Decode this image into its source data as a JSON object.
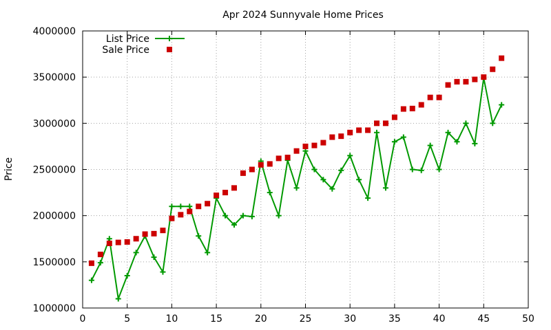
{
  "chart_data": {
    "type": "scatter",
    "title": "Apr 2024 Sunnyvale Home Prices",
    "xlabel": "",
    "ylabel": "Price",
    "xlim": [
      0,
      50
    ],
    "ylim": [
      1000000,
      4000000
    ],
    "xticks": [
      "0",
      "5",
      "10",
      "15",
      "20",
      "25",
      "30",
      "35",
      "40",
      "45",
      "50"
    ],
    "yticks": [
      "1000000",
      "1500000",
      "2000000",
      "2500000",
      "3000000",
      "3500000",
      "4000000"
    ],
    "grid": true,
    "legend_position": "top-left",
    "series": [
      {
        "name": "List Price",
        "style": "line+cross",
        "color": "#009900",
        "x": [
          1,
          2,
          3,
          4,
          5,
          6,
          7,
          8,
          9,
          10,
          11,
          12,
          13,
          14,
          15,
          16,
          17,
          18,
          19,
          20,
          21,
          22,
          23,
          24,
          25,
          26,
          27,
          28,
          29,
          30,
          31,
          32,
          33,
          34,
          35,
          36,
          37,
          38,
          39,
          40,
          41,
          42,
          43,
          44,
          45,
          46,
          47
        ],
        "y": [
          1300000,
          1490000,
          1750000,
          1100000,
          1350000,
          1600000,
          1780000,
          1550000,
          1390000,
          2100000,
          2100000,
          2100000,
          1780000,
          1600000,
          2190000,
          2000000,
          1900000,
          2000000,
          1990000,
          2590000,
          2250000,
          2000000,
          2600000,
          2300000,
          2700000,
          2500000,
          2390000,
          2290000,
          2490000,
          2650000,
          2390000,
          2190000,
          2900000,
          2300000,
          2800000,
          2850000,
          2500000,
          2490000,
          2760000,
          2500000,
          2900000,
          2800000,
          3000000,
          2780000,
          3490000,
          3000000,
          3200000
        ]
      },
      {
        "name": "Sale Price",
        "style": "square",
        "color": "#cc0000",
        "x": [
          1,
          2,
          3,
          4,
          5,
          6,
          7,
          8,
          9,
          10,
          11,
          12,
          13,
          14,
          15,
          16,
          17,
          18,
          19,
          20,
          21,
          22,
          23,
          24,
          25,
          26,
          27,
          28,
          29,
          30,
          31,
          32,
          33,
          34,
          35,
          36,
          37,
          38,
          39,
          40,
          41,
          42,
          43,
          44,
          45,
          46,
          47
        ],
        "y": [
          1485000,
          1580000,
          1700000,
          1710000,
          1715000,
          1750000,
          1800000,
          1805000,
          1840000,
          1970000,
          2010000,
          2045000,
          2100000,
          2130000,
          2220000,
          2250000,
          2300000,
          2460000,
          2500000,
          2550000,
          2560000,
          2620000,
          2630000,
          2700000,
          2750000,
          2760000,
          2790000,
          2850000,
          2860000,
          2900000,
          2925000,
          2925000,
          3000000,
          3000000,
          3065000,
          3155000,
          3160000,
          3200000,
          3280000,
          3280000,
          3415000,
          3450000,
          3450000,
          3475000,
          3500000,
          3585000,
          3705000
        ]
      }
    ]
  }
}
